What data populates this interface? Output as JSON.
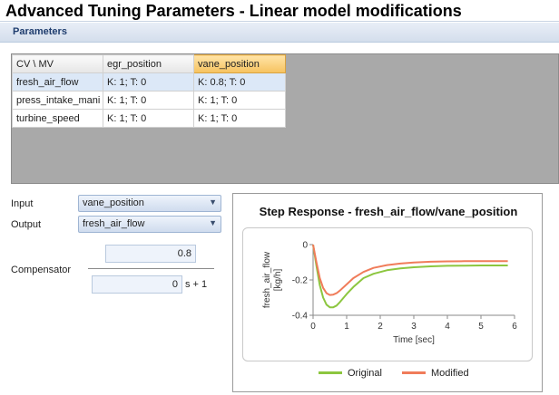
{
  "window": {
    "title": "Advanced Tuning Parameters - Linear model modifications"
  },
  "section": {
    "label": "Parameters"
  },
  "grid": {
    "columns": [
      "CV \\ MV",
      "egr_position",
      "vane_position"
    ],
    "active_column": "vane_position",
    "rows": [
      {
        "cv": "fresh_air_flow",
        "cells": [
          "K: 1; T: 0",
          "K: 0.8; T: 0"
        ]
      },
      {
        "cv": "press_intake_mani",
        "cells": [
          "K: 1; T: 0",
          "K: 1; T: 0"
        ]
      },
      {
        "cv": "turbine_speed",
        "cells": [
          "K: 1; T: 0",
          "K: 1; T: 0"
        ]
      }
    ]
  },
  "form": {
    "input_label": "Input",
    "input_value": "vane_position",
    "output_label": "Output",
    "output_value": "fresh_air_flow",
    "compensator_label": "Compensator",
    "numerator": "0.8",
    "denominator": "0",
    "denominator_suffix": "s + 1"
  },
  "colors": {
    "original": "#8cc63f",
    "modified": "#f07c5a",
    "active_header": "#f6c25e"
  },
  "chart_data": {
    "type": "line",
    "title": "Step Response - fresh_air_flow/vane_position",
    "xlabel": "Time [sec]",
    "ylabel": "fresh_air_flow\n[kg/h]",
    "xlim": [
      0,
      6
    ],
    "ylim": [
      -0.4,
      0
    ],
    "xticks": [
      0,
      1,
      2,
      3,
      4,
      5,
      6
    ],
    "yticks": [
      0,
      -0.2,
      -0.4
    ],
    "ytick_labels": [
      "0",
      "-0.2",
      "-0.4"
    ],
    "legend": "bottom",
    "series": [
      {
        "name": "Original",
        "x": [
          0,
          0.1,
          0.2,
          0.3,
          0.4,
          0.5,
          0.6,
          0.7,
          0.8,
          1.0,
          1.2,
          1.5,
          1.8,
          2.2,
          2.6,
          3.0,
          3.5,
          4.0,
          4.5,
          5.0,
          5.5,
          5.8
        ],
        "y": [
          0,
          -0.12,
          -0.23,
          -0.3,
          -0.34,
          -0.355,
          -0.355,
          -0.345,
          -0.325,
          -0.28,
          -0.24,
          -0.19,
          -0.165,
          -0.145,
          -0.135,
          -0.128,
          -0.123,
          -0.12,
          -0.119,
          -0.118,
          -0.118,
          -0.118
        ]
      },
      {
        "name": "Modified",
        "x": [
          0,
          0.1,
          0.2,
          0.3,
          0.4,
          0.5,
          0.6,
          0.7,
          0.8,
          1.0,
          1.2,
          1.5,
          1.8,
          2.2,
          2.6,
          3.0,
          3.5,
          4.0,
          4.5,
          5.0,
          5.5,
          5.8
        ],
        "y": [
          0,
          -0.1,
          -0.19,
          -0.245,
          -0.275,
          -0.285,
          -0.283,
          -0.275,
          -0.26,
          -0.225,
          -0.19,
          -0.155,
          -0.132,
          -0.116,
          -0.107,
          -0.101,
          -0.097,
          -0.095,
          -0.094,
          -0.094,
          -0.094,
          -0.094
        ]
      }
    ]
  }
}
